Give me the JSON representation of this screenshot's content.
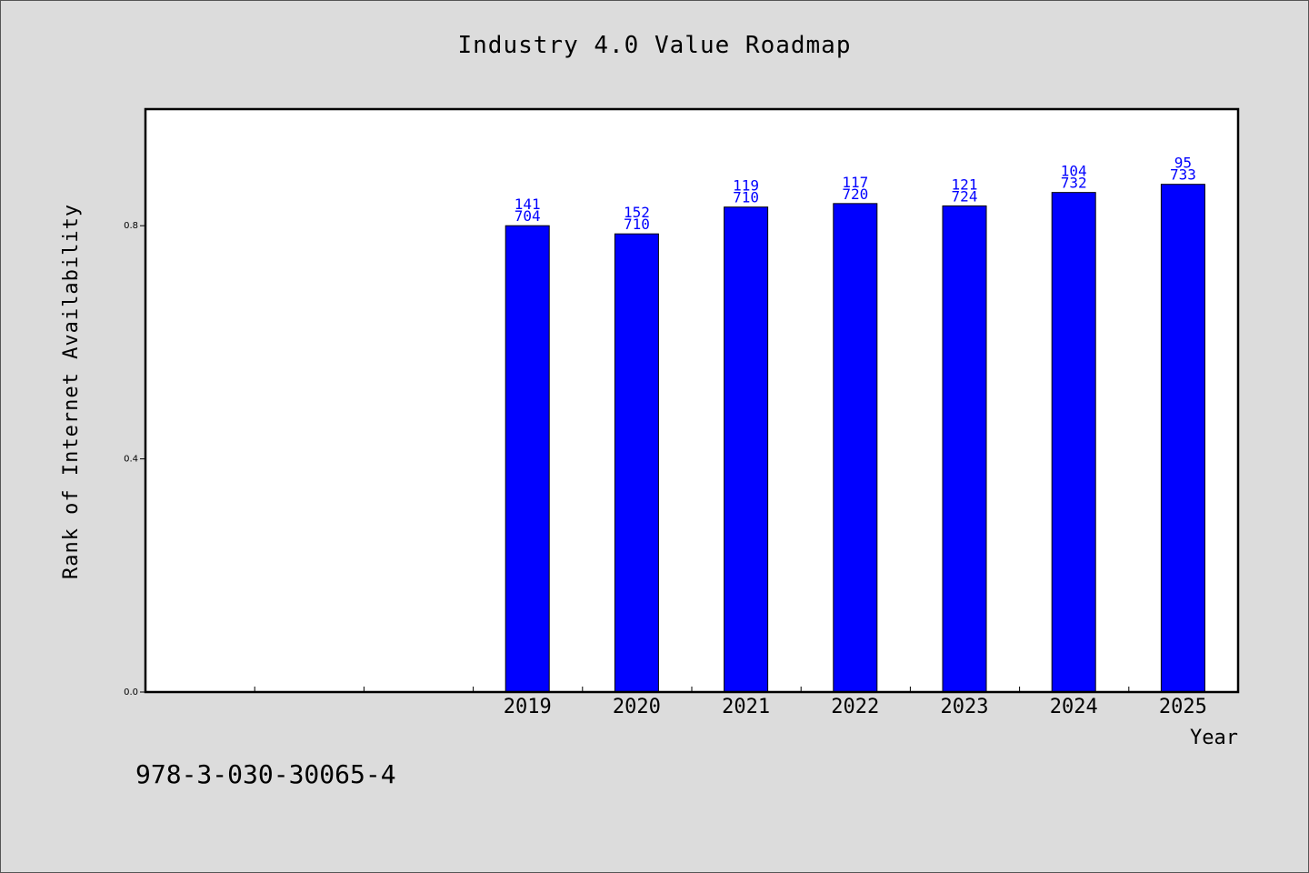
{
  "chart_data": {
    "type": "bar",
    "title": "Industry 4.0 Value Roadmap",
    "xlabel": "Year",
    "ylabel": "Rank of Internet Availability",
    "categories": [
      "",
      "",
      "",
      "2019",
      "2020",
      "2021",
      "2022",
      "2023",
      "2024",
      "2025"
    ],
    "values": [
      null,
      null,
      null,
      0.8,
      0.786,
      0.832,
      0.838,
      0.834,
      0.857,
      0.871
    ],
    "data_labels": [
      null,
      null,
      null,
      [
        "141",
        "704"
      ],
      [
        "152",
        "710"
      ],
      [
        "119",
        "710"
      ],
      [
        "117",
        "720"
      ],
      [
        "121",
        "724"
      ],
      [
        "104",
        "732"
      ],
      [
        "95",
        "733"
      ]
    ],
    "ylim": [
      0,
      1.0
    ],
    "yticks": [
      0.0,
      0.4,
      0.8
    ],
    "ytick_labels": [
      "0.0",
      "0.4",
      "0.8"
    ],
    "grid": false,
    "colors": {
      "bar": "#0000ff",
      "label": "#0000ff",
      "plot_bg": "#ffffff",
      "page_bg": "#dcdcdc"
    }
  },
  "footer": {
    "id_text": "978-3-030-30065-4"
  }
}
